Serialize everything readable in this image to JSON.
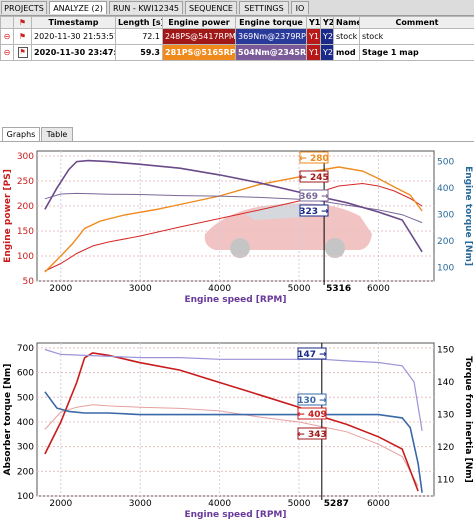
{
  "tabs": [
    {
      "label": "PROJECTS"
    },
    {
      "label": "ANALYZE (2)"
    },
    {
      "label": "RUN - KWI12345"
    },
    {
      "label": "SEQUENCE"
    },
    {
      "label": "SETTINGS"
    },
    {
      "label": "IO"
    }
  ],
  "runs_table": {
    "headers": [
      "Timestamp",
      "Length [s]",
      "Engine power",
      "Engine torque",
      "Y1",
      "Y2",
      "Name",
      "Comment"
    ],
    "rows": [
      {
        "timestamp": "2020-11-30 21:53:57",
        "length": "72.1",
        "power": "248PS@5417RPM",
        "torque": "369Nm@2379RPM",
        "y1": "Y1",
        "y2": "Y2",
        "name": "stock",
        "comment": "stock"
      },
      {
        "timestamp": "2020-11-30 23:47:46",
        "length": "59.3",
        "power": "281PS@5165RPM",
        "torque": "504Nm@2345RPM",
        "y1": "Y1",
        "y2": "Y2",
        "name": "mod",
        "comment": "Stage 1 map"
      }
    ]
  },
  "subtabs": [
    {
      "label": "Graphs"
    },
    {
      "label": "Table"
    }
  ],
  "colors": {
    "power_stock": "#d62828",
    "power_mod": "#f08a1c",
    "torque_stock": "#7a6898",
    "torque_mod": "#6a4a88",
    "absorber_stock": "#e6a0a0",
    "absorber_mod": "#c81c1c",
    "inertia_stock": "#9a94d8",
    "inertia_mod": "#3a68a8"
  },
  "chart_data": [
    {
      "type": "line",
      "xlabel": "Engine speed [RPM]",
      "ylabel": "Engine power [PS]",
      "y2label": "Engine torque [Nm]",
      "xlim": [
        1700,
        6700
      ],
      "ylim": [
        50,
        310
      ],
      "y2lim": [
        50,
        540
      ],
      "xticks": [
        "2000",
        "3000",
        "4000",
        "5000",
        "6000"
      ],
      "yticks": [
        "50",
        "100",
        "150",
        "200",
        "250",
        "300"
      ],
      "y2ticks": [
        "100",
        "200",
        "300",
        "400",
        "500"
      ],
      "cursor_label": "5316",
      "series": [
        {
          "axis": "y1",
          "x": [
            1800,
            2000,
            2200,
            2400,
            2600,
            3000,
            3500,
            4000,
            4500,
            5000,
            5300,
            5500,
            5800,
            6000,
            6200,
            6400,
            6550
          ],
          "values": [
            70,
            85,
            105,
            120,
            128,
            140,
            158,
            175,
            192,
            210,
            230,
            240,
            245,
            240,
            230,
            215,
            200
          ]
        },
        {
          "axis": "y1",
          "x": [
            1800,
            2000,
            2150,
            2300,
            2500,
            2800,
            3200,
            3500,
            4000,
            4500,
            5000,
            5200,
            5500,
            5800,
            6000,
            6200,
            6400,
            6550
          ],
          "values": [
            68,
            100,
            125,
            155,
            170,
            182,
            193,
            203,
            220,
            243,
            258,
            270,
            278,
            270,
            255,
            238,
            222,
            190
          ]
        },
        {
          "axis": "y2",
          "x": [
            1800,
            2000,
            2200,
            2400,
            2600,
            3000,
            3500,
            4000,
            4500,
            5000,
            5300,
            5600,
            6000,
            6300,
            6550
          ],
          "values": [
            360,
            378,
            380,
            379,
            377,
            376,
            372,
            370,
            365,
            358,
            350,
            336,
            318,
            300,
            270
          ]
        },
        {
          "axis": "y2",
          "x": [
            1800,
            1950,
            2100,
            2200,
            2345,
            2600,
            3000,
            3500,
            4000,
            4500,
            5000,
            5300,
            5600,
            6000,
            6300,
            6550
          ],
          "values": [
            320,
            400,
            470,
            500,
            504,
            500,
            490,
            475,
            450,
            420,
            385,
            365,
            345,
            310,
            280,
            160
          ]
        }
      ],
      "labels": [
        {
          "text": "← 280"
        },
        {
          "text": "← 245"
        },
        {
          "text": "369 →"
        },
        {
          "text": "323 →"
        }
      ]
    },
    {
      "type": "line",
      "xlabel": "Engine speed [RPM]",
      "ylabel": "Absorber torque [Nm]",
      "y2label": "Torque from inertia [Nm]",
      "xlim": [
        1700,
        6700
      ],
      "ylim": [
        100,
        720
      ],
      "y2lim": [
        105,
        152
      ],
      "xticks": [
        "2000",
        "3000",
        "4000",
        "5000",
        "6000"
      ],
      "yticks": [
        "100",
        "200",
        "300",
        "400",
        "500",
        "600",
        "700"
      ],
      "y2ticks": [
        "110",
        "120",
        "130",
        "140",
        "150"
      ],
      "cursor_label": "5287",
      "series": [
        {
          "axis": "y1",
          "x": [
            1800,
            2000,
            2200,
            2400,
            2600,
            3000,
            3500,
            4000,
            4500,
            5000,
            5300,
            5600,
            6000,
            6300,
            6500
          ],
          "values": [
            370,
            440,
            460,
            470,
            465,
            460,
            455,
            445,
            420,
            400,
            380,
            360,
            310,
            260,
            140
          ]
        },
        {
          "axis": "y1",
          "x": [
            1800,
            2000,
            2200,
            2300,
            2400,
            2600,
            3000,
            3500,
            4000,
            4500,
            5000,
            5300,
            5600,
            6000,
            6300,
            6500
          ],
          "values": [
            270,
            400,
            560,
            660,
            680,
            670,
            640,
            610,
            560,
            510,
            460,
            420,
            390,
            340,
            290,
            120
          ]
        },
        {
          "axis": "y2",
          "x": [
            1800,
            2000,
            2500,
            3000,
            3500,
            4000,
            4500,
            5000,
            5300,
            5600,
            6000,
            6300,
            6450,
            6550
          ],
          "values": [
            150,
            148.5,
            148,
            147.5,
            147.5,
            147,
            147,
            147,
            147,
            146.5,
            146,
            145,
            140,
            125
          ]
        },
        {
          "axis": "y2",
          "x": [
            1800,
            1950,
            2100,
            2300,
            2600,
            3000,
            3500,
            4000,
            4500,
            5000,
            5300,
            5600,
            6000,
            6300,
            6400,
            6500,
            6550
          ],
          "values": [
            137,
            132,
            131,
            130.5,
            130.5,
            130,
            130,
            130,
            130,
            130,
            130,
            130,
            130,
            129,
            126,
            115,
            106
          ]
        }
      ],
      "labels": [
        {
          "text": "147 →"
        },
        {
          "text": "130 →"
        },
        {
          "text": "← 409"
        },
        {
          "text": "← 343"
        }
      ]
    }
  ]
}
